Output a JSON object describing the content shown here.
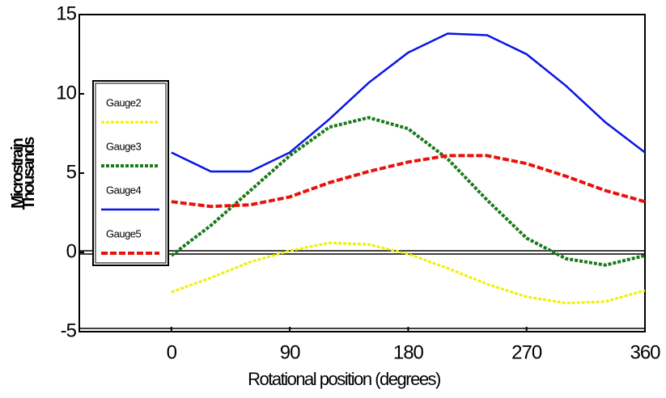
{
  "chart_data": {
    "type": "line",
    "x_label": "Rotational position (degrees)",
    "y_label": [
      "Microstrain",
      "Thousands"
    ],
    "x": [
      0,
      30,
      60,
      90,
      120,
      150,
      180,
      210,
      240,
      270,
      300,
      330,
      360
    ],
    "series": [
      {
        "name": "Gauge2",
        "color": "#f0f000",
        "values": [
          -2.5,
          -1.6,
          -0.6,
          0.1,
          0.6,
          0.5,
          -0.1,
          -1.0,
          -2.0,
          -2.8,
          -3.2,
          -3.1,
          -2.4
        ]
      },
      {
        "name": "Gauge3",
        "color": "#1a7a1a",
        "values": [
          -0.2,
          1.7,
          3.9,
          6.1,
          7.9,
          8.5,
          7.8,
          5.9,
          3.3,
          0.9,
          -0.4,
          -0.8,
          -0.2
        ]
      },
      {
        "name": "Gauge4",
        "color": "#0a14e6",
        "values": [
          6.3,
          5.1,
          5.1,
          6.3,
          8.4,
          10.7,
          12.6,
          13.8,
          13.7,
          12.5,
          10.5,
          8.2,
          6.3
        ]
      },
      {
        "name": "Gauge5",
        "color": "#e8120c",
        "values": [
          3.2,
          2.9,
          3.0,
          3.5,
          4.4,
          5.1,
          5.7,
          6.1,
          6.1,
          5.6,
          4.8,
          3.9,
          3.2
        ]
      }
    ],
    "xlim": [
      -70,
      360
    ],
    "xticks": [
      0,
      90,
      180,
      270,
      360
    ],
    "ylim": [
      -5,
      15
    ],
    "yticks": [
      -5,
      0,
      5,
      10,
      15
    ],
    "legend": "left",
    "grid": false
  }
}
